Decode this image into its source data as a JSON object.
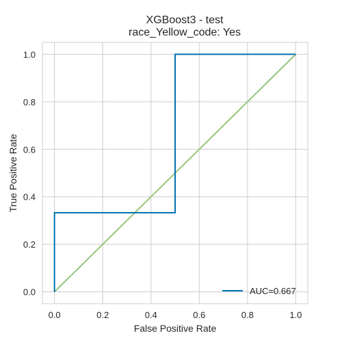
{
  "chart_data": {
    "type": "line",
    "title": "XGBoost3 - test",
    "subtitle": "race_Yellow_code: Yes",
    "xlabel": "False Positive Rate",
    "ylabel": "True Positive Rate",
    "xlim": [
      -0.05,
      1.05
    ],
    "ylim": [
      -0.05,
      1.05
    ],
    "x_ticks": [
      "0.0",
      "0.2",
      "0.4",
      "0.6",
      "0.8",
      "1.0"
    ],
    "y_ticks": [
      "0.0",
      "0.2",
      "0.4",
      "0.6",
      "0.8",
      "1.0"
    ],
    "grid": true,
    "legend_position": "bottom-right",
    "series": [
      {
        "name": "AUC=0.667",
        "color": "#0072b2",
        "x": [
          0.0,
          0.0,
          0.5,
          0.5,
          1.0
        ],
        "y": [
          0.0,
          0.333,
          0.333,
          1.0,
          1.0
        ]
      },
      {
        "color": "#98c47b",
        "x": [
          0.0,
          1.0
        ],
        "y": [
          0.0,
          1.0
        ]
      }
    ]
  }
}
